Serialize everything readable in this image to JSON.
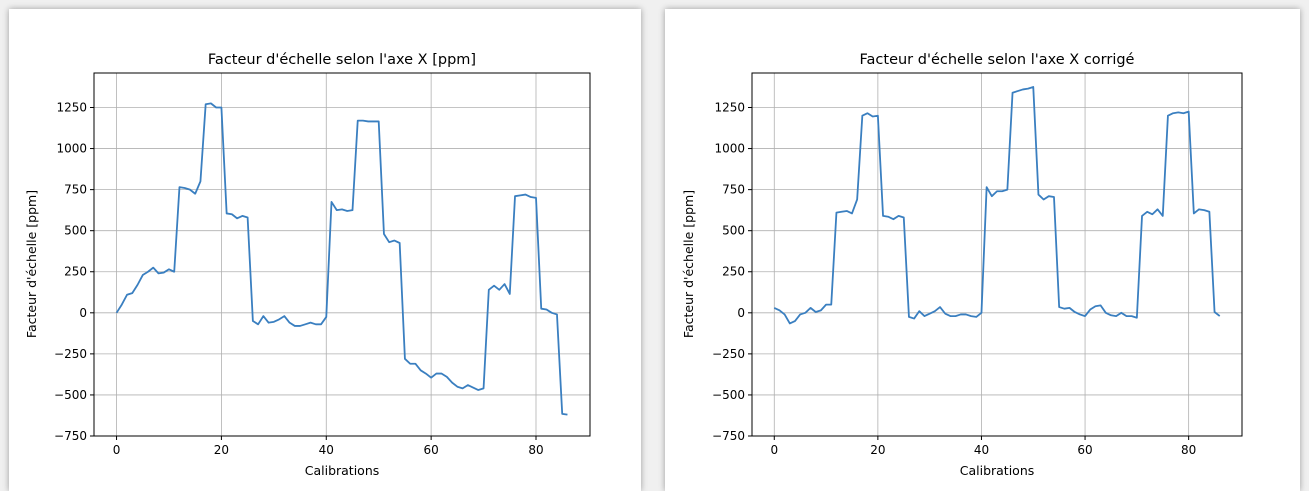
{
  "chart_data": [
    {
      "type": "line",
      "title": "Facteur d'échelle selon l'axe X [ppm]",
      "xlabel": "Calibrations",
      "ylabel": "Facteur d'échelle [ppm]",
      "xlim": [
        -4.3,
        90.3
      ],
      "ylim": [
        -750,
        1460
      ],
      "xticks": [
        0,
        20,
        40,
        60,
        80
      ],
      "yticks": [
        -750,
        -500,
        -250,
        0,
        250,
        500,
        750,
        1000,
        1250
      ],
      "grid": true,
      "line_color": "#3a7fc0",
      "series": [
        {
          "x": [
            0,
            1,
            2,
            3,
            4,
            5,
            6,
            7,
            8,
            9,
            10,
            11,
            12,
            13,
            14,
            15,
            16,
            17,
            18,
            19,
            20,
            21,
            22,
            23,
            24,
            25,
            26,
            27,
            28,
            29,
            30,
            31,
            32,
            33,
            34,
            35,
            36,
            37,
            38,
            39,
            40,
            41,
            42,
            43,
            44,
            45,
            46,
            47,
            48,
            49,
            50,
            51,
            52,
            53,
            54,
            55,
            56,
            57,
            58,
            59,
            60,
            61,
            62,
            63,
            64,
            65,
            66,
            67,
            68,
            69,
            70,
            71,
            72,
            73,
            74,
            75,
            76,
            77,
            78,
            79,
            80,
            81,
            82,
            83,
            84,
            85,
            86
          ],
          "y": [
            0,
            50,
            110,
            120,
            170,
            230,
            250,
            275,
            240,
            245,
            265,
            250,
            765,
            760,
            750,
            725,
            800,
            1270,
            1275,
            1250,
            1250,
            605,
            600,
            575,
            590,
            580,
            -50,
            -70,
            -20,
            -60,
            -55,
            -40,
            -20,
            -60,
            -80,
            -80,
            -70,
            -60,
            -70,
            -70,
            -25,
            675,
            625,
            630,
            620,
            625,
            1170,
            1170,
            1165,
            1165,
            1165,
            480,
            430,
            440,
            425,
            -280,
            -310,
            -310,
            -350,
            -370,
            -395,
            -370,
            -370,
            -390,
            -425,
            -450,
            -460,
            -440,
            -455,
            -470,
            -460,
            140,
            165,
            140,
            175,
            115,
            710,
            715,
            720,
            705,
            700,
            25,
            20,
            0,
            -10,
            -615,
            -620
          ]
        }
      ]
    },
    {
      "type": "line",
      "title": "Facteur d'échelle selon l'axe X corrigé",
      "xlabel": "Calibrations",
      "ylabel": "Facteur d'échelle [ppm]",
      "xlim": [
        -4.3,
        90.3
      ],
      "ylim": [
        -750,
        1460
      ],
      "xticks": [
        0,
        20,
        40,
        60,
        80
      ],
      "yticks": [
        -750,
        -500,
        -250,
        0,
        250,
        500,
        750,
        1000,
        1250
      ],
      "grid": true,
      "line_color": "#3a7fc0",
      "series": [
        {
          "x": [
            0,
            1,
            2,
            3,
            4,
            5,
            6,
            7,
            8,
            9,
            10,
            11,
            12,
            13,
            14,
            15,
            16,
            17,
            18,
            19,
            20,
            21,
            22,
            23,
            24,
            25,
            26,
            27,
            28,
            29,
            30,
            31,
            32,
            33,
            34,
            35,
            36,
            37,
            38,
            39,
            40,
            41,
            42,
            43,
            44,
            45,
            46,
            47,
            48,
            49,
            50,
            51,
            52,
            53,
            54,
            55,
            56,
            57,
            58,
            59,
            60,
            61,
            62,
            63,
            64,
            65,
            66,
            67,
            68,
            69,
            70,
            71,
            72,
            73,
            74,
            75,
            76,
            77,
            78,
            79,
            80,
            81,
            82,
            83,
            84,
            85,
            86
          ],
          "y": [
            30,
            15,
            -10,
            -65,
            -50,
            -10,
            0,
            30,
            5,
            15,
            50,
            50,
            610,
            615,
            620,
            605,
            690,
            1200,
            1215,
            1195,
            1200,
            590,
            585,
            570,
            590,
            580,
            -25,
            -35,
            10,
            -20,
            -5,
            10,
            35,
            -5,
            -20,
            -20,
            -10,
            -10,
            -20,
            -25,
            0,
            765,
            710,
            740,
            740,
            750,
            1340,
            1350,
            1360,
            1365,
            1375,
            720,
            690,
            710,
            705,
            35,
            25,
            30,
            5,
            -10,
            -20,
            20,
            40,
            45,
            0,
            -15,
            -20,
            0,
            -20,
            -20,
            -30,
            590,
            615,
            600,
            630,
            590,
            1200,
            1215,
            1220,
            1215,
            1225,
            605,
            630,
            625,
            615,
            5,
            -20
          ]
        }
      ]
    }
  ]
}
